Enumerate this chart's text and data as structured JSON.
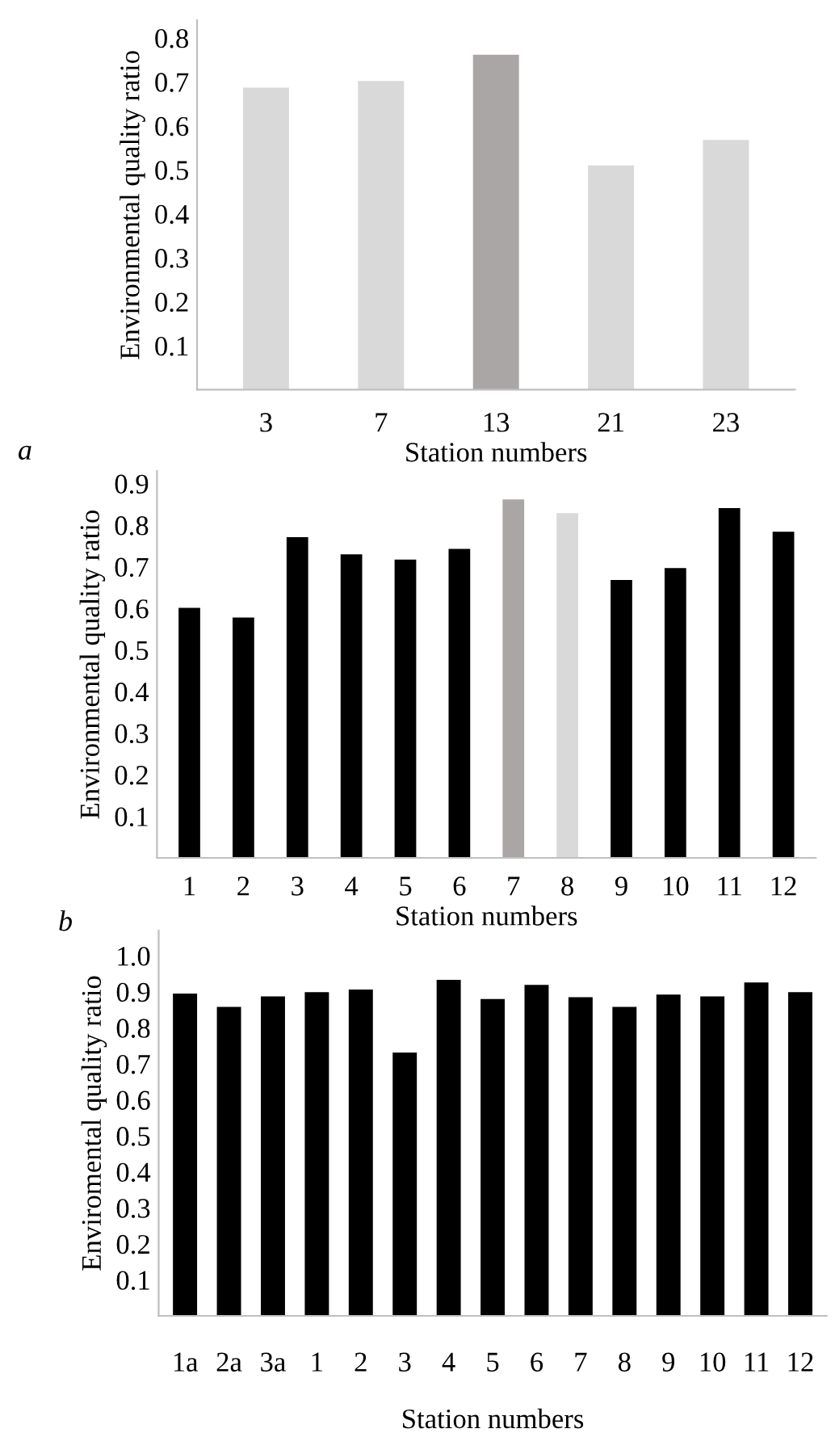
{
  "chart_data": [
    {
      "type": "bar",
      "ylabel": "Environmental quality ratio",
      "xlabel": "Station numbers",
      "annotations": [
        "a"
      ],
      "categories": [
        "3",
        "7",
        "13",
        "21",
        "23"
      ],
      "values": [
        0.687,
        0.702,
        0.762,
        0.51,
        0.568
      ],
      "colors": [
        "#d9d9d9",
        "#d9d9d9",
        "#aaa6a5",
        "#d9d9d9",
        "#d9d9d9"
      ],
      "ylim": [
        0,
        0.84
      ],
      "yticks": [
        0.1,
        0.2,
        0.3,
        0.4,
        0.5,
        0.6,
        0.7,
        0.8
      ],
      "grid": false,
      "legend": false
    },
    {
      "type": "bar",
      "ylabel": "Environmental quality ratio",
      "xlabel": "Station numbers",
      "annotations": [
        "b"
      ],
      "categories": [
        "1",
        "2",
        "3",
        "4",
        "5",
        "6",
        "7",
        "8",
        "9",
        "10",
        "11",
        "12"
      ],
      "values": [
        0.601,
        0.578,
        0.771,
        0.73,
        0.717,
        0.743,
        0.862,
        0.829,
        0.668,
        0.697,
        0.841,
        0.784
      ],
      "colors": [
        "#000000",
        "#000000",
        "#000000",
        "#000000",
        "#000000",
        "#000000",
        "#aaa6a5",
        "#d9d9d9",
        "#000000",
        "#000000",
        "#000000",
        "#000000"
      ],
      "ylim": [
        0,
        0.93
      ],
      "yticks": [
        0.1,
        0.2,
        0.3,
        0.4,
        0.5,
        0.6,
        0.7,
        0.8,
        0.9
      ],
      "grid": false,
      "legend": false
    },
    {
      "type": "bar",
      "ylabel": "Enviromental quality ratio",
      "xlabel": "Station numbers",
      "categories": [
        "1a",
        "2a",
        "3a",
        "1",
        "2",
        "3",
        "4",
        "5",
        "6",
        "7",
        "8",
        "9",
        "10",
        "11",
        "12"
      ],
      "values": [
        0.895,
        0.858,
        0.887,
        0.899,
        0.906,
        0.731,
        0.933,
        0.88,
        0.919,
        0.885,
        0.858,
        0.892,
        0.887,
        0.926,
        0.899
      ],
      "color": "#000000",
      "ylim": [
        0,
        1.07
      ],
      "yticks": [
        {
          "value": 0.1,
          "label": "0.1"
        },
        {
          "value": 0.2,
          "label": "0.2"
        },
        {
          "value": 0.3,
          "label": "0.3"
        },
        {
          "value": 0.4,
          "label": "0.4"
        },
        {
          "value": 0.5,
          "label": "0.5"
        },
        {
          "value": 0.6,
          "label": "0.6"
        },
        {
          "value": 0.7,
          "label": "0.7"
        },
        {
          "value": 0.8,
          "label": "0.8"
        },
        {
          "value": 0.9,
          "label": "0.9"
        },
        {
          "value": 1.0,
          "label": "1.0"
        }
      ],
      "grid": false,
      "legend": false
    }
  ]
}
